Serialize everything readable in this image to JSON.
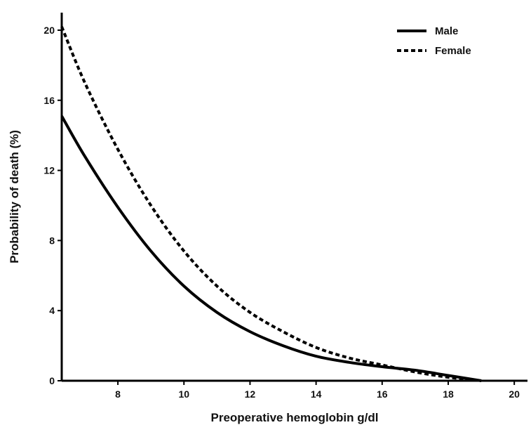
{
  "chart_data": {
    "type": "line",
    "title": "",
    "xlabel": "Preoperative hemoglobin g/dl",
    "ylabel": "Probability of death (%)",
    "xlim": [
      6.3,
      20.4
    ],
    "ylim": [
      0,
      21
    ],
    "xticks": [
      8,
      10,
      12,
      14,
      16,
      18,
      20
    ],
    "yticks": [
      0,
      4,
      8,
      12,
      16,
      20
    ],
    "grid": false,
    "legend_position": "top-right",
    "series": [
      {
        "name": "Male",
        "style": "solid",
        "color": "#000000",
        "x": [
          6.3,
          7,
          8,
          9,
          10,
          11,
          12,
          13,
          14,
          15,
          16,
          17,
          18,
          19
        ],
        "y": [
          15.1,
          12.8,
          9.9,
          7.4,
          5.4,
          3.9,
          2.8,
          2.0,
          1.4,
          1.05,
          0.8,
          0.6,
          0.3,
          0.0
        ]
      },
      {
        "name": "Female",
        "style": "dashed",
        "color": "#000000",
        "x": [
          6.3,
          7,
          8,
          9,
          10,
          11,
          12,
          13,
          14,
          15,
          16,
          17,
          18,
          19
        ],
        "y": [
          20.2,
          17.0,
          13.2,
          10.0,
          7.4,
          5.4,
          3.9,
          2.8,
          1.9,
          1.3,
          0.9,
          0.5,
          0.2,
          0.0
        ]
      }
    ]
  }
}
